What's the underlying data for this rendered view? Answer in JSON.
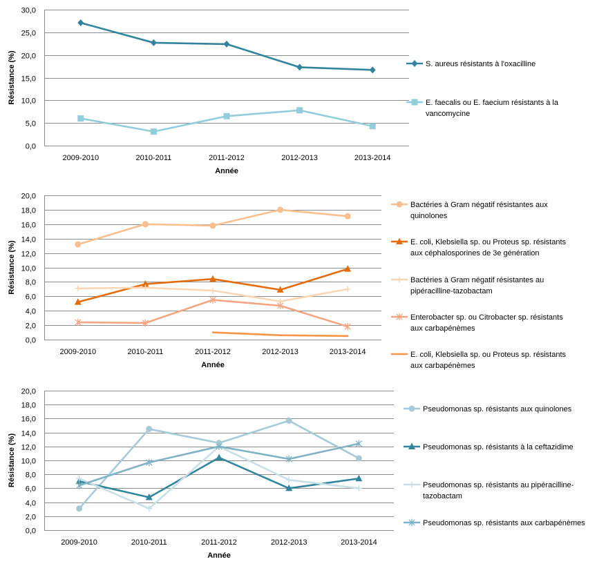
{
  "chart_data": [
    {
      "type": "line",
      "xlabel": "Année",
      "ylabel": "Résistance (%)",
      "ylim": [
        0,
        30
      ],
      "ytick_step": 5,
      "ytick_decimals": 1,
      "categories": [
        "2009-2010",
        "2010-2011",
        "2011-2012",
        "2012-2013",
        "2013-2014"
      ],
      "grid": "horizontal",
      "legend_position": "right",
      "series": [
        {
          "name": "S. aureus résistants  à l'oxacilline",
          "legend_lines": [
            "S. aureus résistants  à l'oxacilline"
          ],
          "color": "#31849b",
          "marker": "diamond",
          "values": [
            27.1,
            22.7,
            22.4,
            17.3,
            16.7
          ]
        },
        {
          "name": "E. faecalis ou E. faecium résistants à la vancomycine",
          "legend_lines": [
            "E. faecalis ou E. faecium résistants à la",
            "vancomycine"
          ],
          "color": "#92cddc",
          "marker": "square",
          "values": [
            6.0,
            3.1,
            6.5,
            7.8,
            4.3
          ]
        }
      ]
    },
    {
      "type": "line",
      "xlabel": "Année",
      "ylabel": "Résistance (%)",
      "ylim": [
        0,
        20
      ],
      "ytick_step": 2,
      "ytick_decimals": 1,
      "categories": [
        "2009-2010",
        "2010-2011",
        "2011-2012",
        "2012-2013",
        "2013-2014"
      ],
      "grid": "horizontal",
      "legend_position": "right",
      "series": [
        {
          "name": "Bactéries à Gram négatif résistantes aux quinolones",
          "legend_lines": [
            "Bactéries à Gram négatif résistantes aux",
            "quinolones"
          ],
          "color": "#fabf8f",
          "marker": "circle",
          "values": [
            13.2,
            16.0,
            15.8,
            18.0,
            17.1
          ]
        },
        {
          "name": "E. coli, Klebsiella sp. ou Proteus sp. résistants aux céphalosporines de 3e génération",
          "legend_lines": [
            "E. coli, Klebsiella sp. ou Proteus sp. résistants",
            "aux céphalosporines de 3e génération"
          ],
          "color": "#e46c0a",
          "marker": "triangle",
          "values": [
            5.2,
            7.7,
            8.4,
            6.9,
            9.8
          ]
        },
        {
          "name": "Bactéries à Gram négatif résistantes au pipéracilline-tazobactam",
          "legend_lines": [
            "Bactéries à Gram négatif résistantes au",
            "pipéracilline-tazobactam"
          ],
          "color": "#fcd5b4",
          "marker": "plus",
          "values": [
            7.1,
            7.2,
            6.8,
            5.3,
            7.0
          ]
        },
        {
          "name": "Enterobacter sp. ou Citrobacter sp. résistants aux carbapénèmes",
          "legend_lines": [
            "Enterobacter sp. ou Citrobacter sp. résistants",
            "aux carbapénèmes"
          ],
          "color": "#f4a582",
          "marker": "asterisk",
          "values": [
            2.4,
            2.3,
            5.5,
            4.7,
            1.8
          ]
        },
        {
          "name": "E. coli, Klebsiella sp. ou Proteus sp. résistants aux carbapénèmes",
          "legend_lines": [
            "E. coli, Klebsiella sp. ou Proteus sp. résistants",
            "aux carbapénèmes"
          ],
          "color": "#f79646",
          "marker": "none",
          "values": [
            null,
            null,
            1.0,
            0.6,
            0.5
          ]
        }
      ]
    },
    {
      "type": "line",
      "xlabel": "Année",
      "ylabel": "Résistance (%)",
      "ylim": [
        0,
        20
      ],
      "ytick_step": 2,
      "ytick_decimals": 1,
      "categories": [
        "2009-2010",
        "2010-2011",
        "2011-2012",
        "2012-2013",
        "2013-2014"
      ],
      "grid": "horizontal",
      "legend_position": "right",
      "series": [
        {
          "name": "Pseudomonas sp. résistants aux quinolones",
          "legend_lines": [
            "Pseudomonas sp. résistants aux quinolones"
          ],
          "color": "#a5cbd8",
          "marker": "circle",
          "values": [
            3.1,
            14.5,
            12.5,
            15.7,
            10.3
          ]
        },
        {
          "name": "Pseudomonas sp. résistants à la ceftazidime",
          "legend_lines": [
            "Pseudomonas sp. résistants à la ceftazidime"
          ],
          "color": "#31859c",
          "marker": "triangle",
          "values": [
            7.0,
            4.7,
            10.4,
            6.0,
            7.4
          ]
        },
        {
          "name": "Pseudomonas sp. résistants au pipéracilline-tazobactam",
          "legend_lines": [
            "Pseudomonas sp. résistants au pipéracilline-",
            "tazobactam"
          ],
          "color": "#c9dfe7",
          "marker": "plus",
          "values": [
            7.4,
            3.1,
            12.0,
            7.2,
            6.0
          ]
        },
        {
          "name": "Pseudomonas sp. résistants aux carbapénèmes",
          "legend_lines": [
            "Pseudomonas sp. résistants aux carbapénèmes"
          ],
          "color": "#7fb2c4",
          "marker": "asterisk",
          "values": [
            6.4,
            9.7,
            12.0,
            10.2,
            12.4
          ]
        }
      ]
    }
  ]
}
